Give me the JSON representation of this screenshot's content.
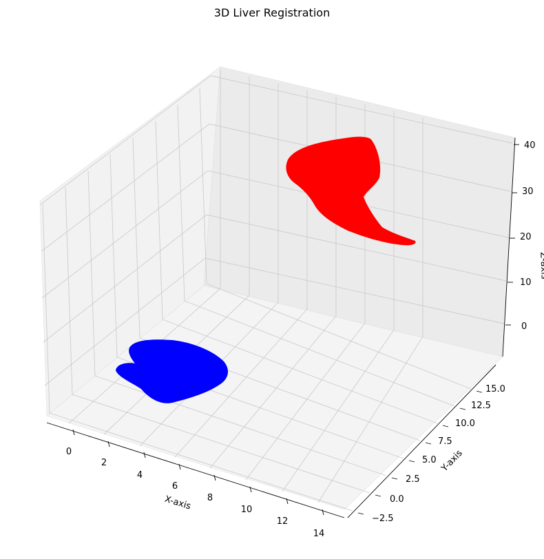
{
  "chart_data": {
    "type": "scatter",
    "projection": "3d",
    "title": "3D Liver Registration",
    "xlabel": "X-axis",
    "ylabel": "Y-axis",
    "zlabel": "Z-axis",
    "xticks": [
      "0",
      "2",
      "4",
      "6",
      "8",
      "10",
      "12",
      "14"
    ],
    "yticks": [
      "−2.5",
      "0.0",
      "2.5",
      "5.0",
      "7.5",
      "10.0",
      "12.5",
      "15.0"
    ],
    "zticks": [
      "0",
      "10",
      "20",
      "30",
      "40"
    ],
    "grid": true,
    "series": [
      {
        "color": "#ff0000",
        "shape": "point cloud, upper region"
      },
      {
        "color": "#0000ff",
        "shape": "point cloud, lower region"
      }
    ]
  }
}
